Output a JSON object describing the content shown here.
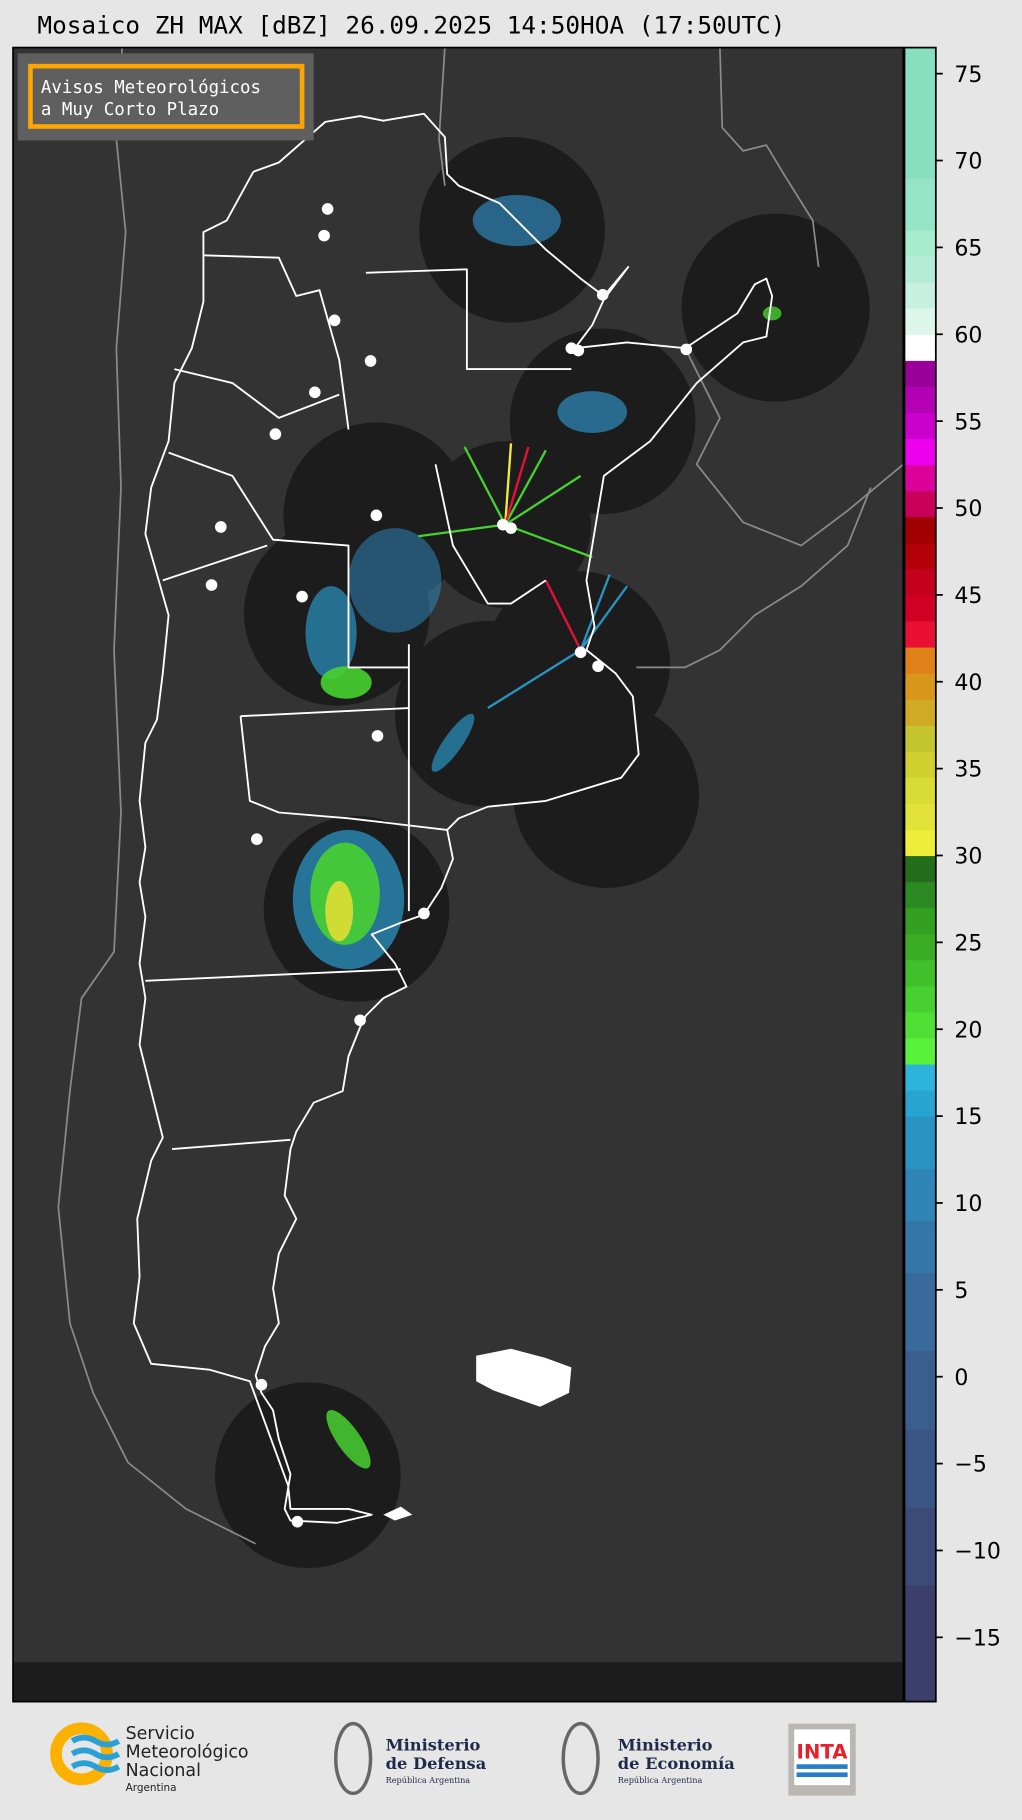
{
  "title": "Mosaico ZH MAX [dBZ] 26.09.2025 14:50HOA (17:50UTC)",
  "info_box": {
    "line1": "Avisos Meteorológicos",
    "line2": "a Muy Corto Plazo",
    "border_color": "#ffa500"
  },
  "map": {
    "background": "#333333",
    "radar_coverage_color": "#1c1c1c",
    "border_color": "#ffffff",
    "neighbor_border_color": "#8a8a8a"
  },
  "colorbar": {
    "unit": "dBZ",
    "range": [
      -18.7,
      76.5
    ],
    "ticks": [
      "75",
      "70",
      "65",
      "60",
      "55",
      "50",
      "45",
      "40",
      "35",
      "30",
      "25",
      "20",
      "15",
      "10",
      "5",
      "0",
      "−5",
      "−10",
      "−15"
    ],
    "tick_values": [
      75,
      70,
      65,
      60,
      55,
      50,
      45,
      40,
      35,
      30,
      25,
      20,
      15,
      10,
      5,
      0,
      -5,
      -10,
      -15
    ],
    "bins": [
      [
        -18.7,
        -12,
        "#3c3f6c"
      ],
      [
        -12,
        -7.5,
        "#3c4a78"
      ],
      [
        -7.5,
        -3,
        "#3b5584"
      ],
      [
        -3,
        1.5,
        "#3a5f8e"
      ],
      [
        1.5,
        6,
        "#386b9c"
      ],
      [
        6,
        9,
        "#3377a8"
      ],
      [
        9,
        12,
        "#2e85b6"
      ],
      [
        12,
        15,
        "#2993c2"
      ],
      [
        15,
        16.5,
        "#27a4d2"
      ],
      [
        16.5,
        18,
        "#2cb4dc"
      ],
      [
        18,
        19.5,
        "#58f23a"
      ],
      [
        19.5,
        21,
        "#50e035"
      ],
      [
        21,
        22.5,
        "#48d030"
      ],
      [
        22.5,
        24,
        "#40c02a"
      ],
      [
        24,
        25.5,
        "#3aad25"
      ],
      [
        25.5,
        27,
        "#34a022"
      ],
      [
        27,
        28.5,
        "#2c8a22"
      ],
      [
        28.5,
        30,
        "#236e1a"
      ],
      [
        30,
        31.5,
        "#eeee3a"
      ],
      [
        31.5,
        33,
        "#e2e23a"
      ],
      [
        33,
        34.5,
        "#d8dc34"
      ],
      [
        34.5,
        36,
        "#d0d030"
      ],
      [
        36,
        37.5,
        "#c4c42e"
      ],
      [
        37.5,
        39,
        "#d0aa22"
      ],
      [
        39,
        40.5,
        "#d8961a"
      ],
      [
        40.5,
        42,
        "#e08018"
      ],
      [
        42,
        43.5,
        "#ea1034"
      ],
      [
        43.5,
        45,
        "#d20024"
      ],
      [
        45,
        46.5,
        "#c4001c"
      ],
      [
        46.5,
        48,
        "#b40008"
      ],
      [
        48,
        49.5,
        "#a00000"
      ],
      [
        49.5,
        51,
        "#c8005a"
      ],
      [
        51,
        52.5,
        "#dc009a"
      ],
      [
        52.5,
        54,
        "#ee00ee"
      ],
      [
        54,
        55.5,
        "#cc00cc"
      ],
      [
        55.5,
        57,
        "#b400b4"
      ],
      [
        57,
        58.5,
        "#9a009a"
      ],
      [
        58.5,
        60,
        "#ffffff"
      ],
      [
        60,
        61.5,
        "#def5ec"
      ],
      [
        61.5,
        63,
        "#c8f0e0"
      ],
      [
        63,
        64.5,
        "#b4ecd6"
      ],
      [
        64.5,
        66,
        "#a8ecd0"
      ],
      [
        66,
        69,
        "#96e4c6"
      ],
      [
        69,
        76.5,
        "#88dfbd"
      ]
    ]
  },
  "logos": {
    "smn": {
      "line1": "Servicio",
      "line2": "Meteorológico",
      "line3": "Nacional",
      "line4": "Argentina"
    },
    "defensa": {
      "line1": "Ministerio",
      "line2": "de Defensa",
      "line3": "República Argentina"
    },
    "economia": {
      "line1": "Ministerio",
      "line2": "de Economía",
      "line3": "República Argentina"
    },
    "inta": {
      "label": "INTA"
    }
  }
}
